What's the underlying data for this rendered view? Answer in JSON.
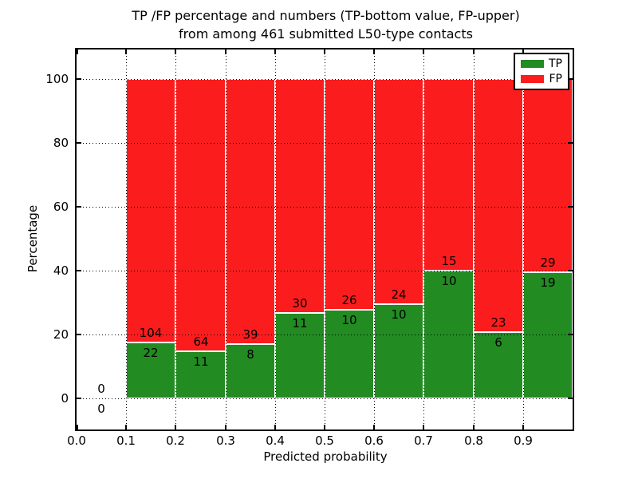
{
  "chart_data": {
    "type": "bar",
    "stacked": true,
    "title_line1": "TP /FP percentage and numbers (TP-bottom value, FP-upper)",
    "title_line2": "from among 461 submitted L50-type contacts",
    "xlabel": "Predicted probability",
    "ylabel": "Percentage",
    "xlim": [
      0.0,
      1.0
    ],
    "ylim": [
      -10,
      110
    ],
    "grid": true,
    "total_contacts": 461,
    "xticks": [
      {
        "value": 0.0,
        "label": "0.0"
      },
      {
        "value": 0.1,
        "label": "0.1"
      },
      {
        "value": 0.2,
        "label": "0.2"
      },
      {
        "value": 0.3,
        "label": "0.3"
      },
      {
        "value": 0.4,
        "label": "0.4"
      },
      {
        "value": 0.5,
        "label": "0.5"
      },
      {
        "value": 0.6,
        "label": "0.6"
      },
      {
        "value": 0.7,
        "label": "0.7"
      },
      {
        "value": 0.8,
        "label": "0.8"
      },
      {
        "value": 0.9,
        "label": "0.9"
      }
    ],
    "yticks": [
      {
        "value": 0,
        "label": "0"
      },
      {
        "value": 20,
        "label": "20"
      },
      {
        "value": 40,
        "label": "40"
      },
      {
        "value": 60,
        "label": "60"
      },
      {
        "value": 80,
        "label": "80"
      },
      {
        "value": 100,
        "label": "100"
      }
    ],
    "colors": {
      "tp": "#228b22",
      "fp": "#fb1d1d"
    },
    "legend": {
      "position": "upper right",
      "entries": [
        {
          "label": "TP",
          "color": "#228b22"
        },
        {
          "label": "FP",
          "color": "#fb1d1d"
        }
      ]
    },
    "bins": [
      {
        "x0": 0.0,
        "x1": 0.1,
        "tp": 0,
        "fp": 0,
        "tp_pct": 0,
        "draw_bar": false
      },
      {
        "x0": 0.1,
        "x1": 0.2,
        "tp": 22,
        "fp": 104,
        "tp_pct": 17.46,
        "draw_bar": true
      },
      {
        "x0": 0.2,
        "x1": 0.3,
        "tp": 11,
        "fp": 64,
        "tp_pct": 14.67,
        "draw_bar": true
      },
      {
        "x0": 0.3,
        "x1": 0.4,
        "tp": 8,
        "fp": 39,
        "tp_pct": 17.02,
        "draw_bar": true
      },
      {
        "x0": 0.4,
        "x1": 0.5,
        "tp": 11,
        "fp": 30,
        "tp_pct": 26.83,
        "draw_bar": true
      },
      {
        "x0": 0.5,
        "x1": 0.6,
        "tp": 10,
        "fp": 26,
        "tp_pct": 27.78,
        "draw_bar": true
      },
      {
        "x0": 0.6,
        "x1": 0.7,
        "tp": 10,
        "fp": 24,
        "tp_pct": 29.41,
        "draw_bar": true
      },
      {
        "x0": 0.7,
        "x1": 0.8,
        "tp": 10,
        "fp": 15,
        "tp_pct": 40.0,
        "draw_bar": true
      },
      {
        "x0": 0.8,
        "x1": 0.9,
        "tp": 6,
        "fp": 23,
        "tp_pct": 20.69,
        "draw_bar": true
      },
      {
        "x0": 0.9,
        "x1": 1.0,
        "tp": 19,
        "fp": 29,
        "tp_pct": 39.58,
        "draw_bar": true
      }
    ]
  }
}
